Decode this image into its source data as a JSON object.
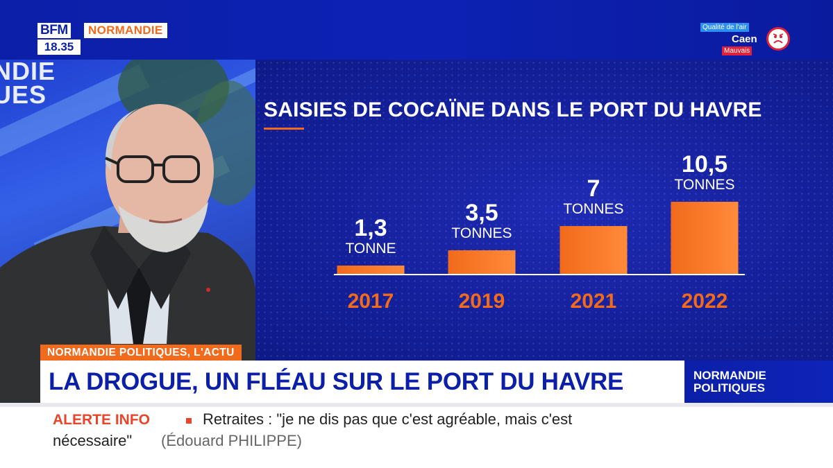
{
  "channel": {
    "logo": "BFM",
    "region": "NORMANDIE",
    "time": "18.35"
  },
  "air_quality": {
    "title": "Qualité de l'air",
    "city": "Caen",
    "status": "Mauvais",
    "icon": "sad-face-icon",
    "status_color": "#e0213a"
  },
  "background_text": [
    "NDIE",
    "UES"
  ],
  "chart_data": {
    "type": "bar",
    "title": "SAISIES DE COCAÏNE DANS LE PORT DU HAVRE",
    "categories": [
      "2017",
      "2019",
      "2021",
      "2022"
    ],
    "values": [
      1.3,
      3.5,
      7,
      10.5
    ],
    "value_labels": [
      "1,3",
      "3,5",
      "7",
      "10,5"
    ],
    "unit_labels": [
      "TONNE",
      "TONNES",
      "TONNES",
      "TONNES"
    ],
    "bar_color": "#f26a1b",
    "ylim": [
      0,
      10.5
    ]
  },
  "lower_third": {
    "kicker": "NORMANDIE POLITIQUES, L'ACTU",
    "headline": "LA DROGUE, UN FLÉAU SUR LE PORT DU HAVRE",
    "show_line1": "NORMANDIE",
    "show_line2": "POLITIQUES"
  },
  "ticker": {
    "label": "ALERTE INFO",
    "text_line1": "Retraites : \"je ne dis pas que c'est agréable, mais c'est",
    "text_line2": "nécessaire\"",
    "source": "(Édouard PHILIPPE)"
  },
  "colors": {
    "brand_blue": "#0b1fa8",
    "accent_orange": "#f26a1b",
    "alert_red": "#e8452a"
  }
}
